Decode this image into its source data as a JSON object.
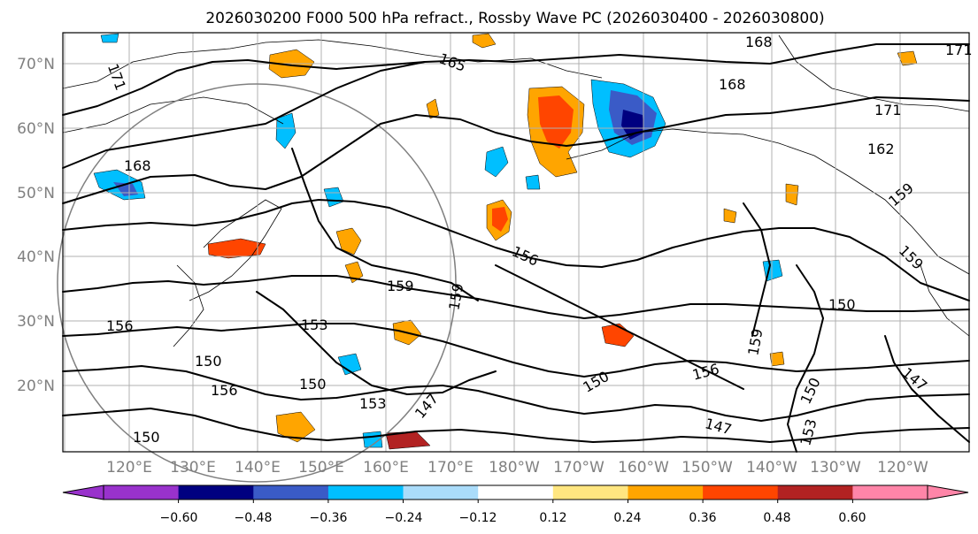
{
  "title": "2026030200 F000 500 hPa refract., Rossby Wave PC (2026030400 - 2026030800)",
  "lat_labels": [
    "70°N",
    "60°N",
    "50°N",
    "40°N",
    "30°N",
    "20°N"
  ],
  "lon_labels": [
    "120°E",
    "130°E",
    "140°E",
    "150°E",
    "160°E",
    "170°E",
    "180°W",
    "170°W",
    "160°W",
    "150°W",
    "140°W",
    "130°W",
    "120°W"
  ],
  "colorbar": {
    "ticks": [
      "−0.60",
      "−0.48",
      "−0.36",
      "−0.24",
      "−0.12",
      "0.12",
      "0.24",
      "0.36",
      "0.48",
      "0.60"
    ],
    "colors": [
      "#9932cc",
      "#000080",
      "#3a5bc7",
      "#00bfff",
      "#aadcfa",
      "#ffffff",
      "#ffe680",
      "#ffa500",
      "#ff4500",
      "#b22222",
      "#ff85a8"
    ]
  },
  "contour_labels": [
    "168",
    "171",
    "165",
    "168",
    "171",
    "162",
    "159",
    "171",
    "168",
    "156",
    "159",
    "159",
    "153",
    "156",
    "150",
    "150",
    "153",
    "156",
    "150",
    "147",
    "150",
    "156",
    "147",
    "159",
    "150",
    "147",
    "153",
    "150",
    "159"
  ],
  "legend_colors": {
    "positive": [
      "#ffe680",
      "#ffa500",
      "#ff4500",
      "#b22222"
    ],
    "negative": [
      "#aadcfa",
      "#00bfff",
      "#3a5bc7",
      "#000080"
    ]
  }
}
